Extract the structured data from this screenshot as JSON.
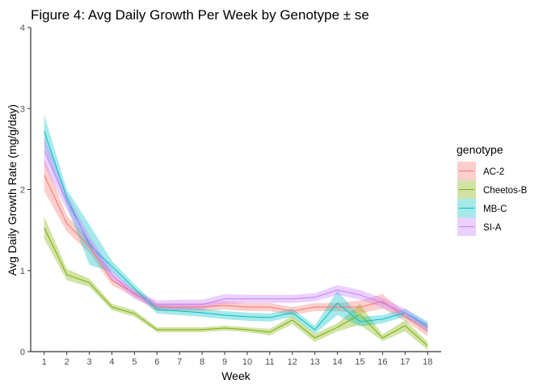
{
  "chart_data": {
    "type": "line",
    "title": "Figure 4: Avg Daily Growth Per Week by Genotype ± se",
    "xlabel": "Week",
    "ylabel": "Avg Daily Growth Rate (mg/g/day)",
    "x": [
      1,
      2,
      3,
      4,
      5,
      6,
      7,
      8,
      9,
      10,
      11,
      12,
      13,
      14,
      15,
      16,
      17,
      18
    ],
    "x_tick_labels": [
      "1",
      "2",
      "3",
      "4",
      "5",
      "6",
      "7",
      "8",
      "9",
      "10",
      "11",
      "12",
      "13",
      "14",
      "15",
      "16",
      "17",
      "18"
    ],
    "y_tick_labels": [
      "0",
      "1",
      "2",
      "3",
      "4"
    ],
    "y_ticks": [
      0,
      1,
      2,
      3,
      4
    ],
    "xlim": [
      0.4,
      18.6
    ],
    "ylim": [
      0,
      4
    ],
    "grid": false,
    "band": "mean ± se",
    "legend": {
      "title": "genotype",
      "position": "right"
    },
    "series": [
      {
        "name": "AC-2",
        "color": "#F8766D",
        "values": [
          2.18,
          1.58,
          1.3,
          0.88,
          0.72,
          0.55,
          0.55,
          0.55,
          0.57,
          0.55,
          0.55,
          0.5,
          0.55,
          0.55,
          0.55,
          0.62,
          0.43,
          0.25
        ],
        "se": [
          0.2,
          0.1,
          0.08,
          0.06,
          0.05,
          0.05,
          0.05,
          0.05,
          0.05,
          0.05,
          0.05,
          0.05,
          0.05,
          0.05,
          0.08,
          0.09,
          0.05,
          0.06
        ]
      },
      {
        "name": "Cheetos-B",
        "color": "#7CAE00",
        "values": [
          1.53,
          0.95,
          0.85,
          0.55,
          0.47,
          0.27,
          0.27,
          0.27,
          0.29,
          0.27,
          0.24,
          0.39,
          0.17,
          0.3,
          0.46,
          0.17,
          0.32,
          0.07
        ],
        "se": [
          0.14,
          0.07,
          0.05,
          0.04,
          0.04,
          0.03,
          0.03,
          0.03,
          0.03,
          0.03,
          0.04,
          0.05,
          0.05,
          0.05,
          0.13,
          0.04,
          0.07,
          0.05
        ]
      },
      {
        "name": "MB-C",
        "color": "#00BFC4",
        "values": [
          2.72,
          1.9,
          1.32,
          1.05,
          0.78,
          0.52,
          0.5,
          0.48,
          0.45,
          0.43,
          0.42,
          0.48,
          0.27,
          0.6,
          0.37,
          0.4,
          0.48,
          0.32
        ],
        "se": [
          0.2,
          0.1,
          0.25,
          0.07,
          0.05,
          0.05,
          0.05,
          0.05,
          0.05,
          0.05,
          0.05,
          0.05,
          0.05,
          0.15,
          0.06,
          0.05,
          0.05,
          0.05
        ]
      },
      {
        "name": "SI-A",
        "color": "#C77CFF",
        "values": [
          2.48,
          1.85,
          1.35,
          0.95,
          0.7,
          0.58,
          0.58,
          0.58,
          0.65,
          0.65,
          0.65,
          0.65,
          0.67,
          0.76,
          0.7,
          0.6,
          0.48,
          0.3
        ],
        "se": [
          0.18,
          0.1,
          0.08,
          0.06,
          0.05,
          0.05,
          0.06,
          0.06,
          0.06,
          0.05,
          0.05,
          0.05,
          0.05,
          0.06,
          0.06,
          0.06,
          0.05,
          0.05
        ]
      }
    ]
  }
}
